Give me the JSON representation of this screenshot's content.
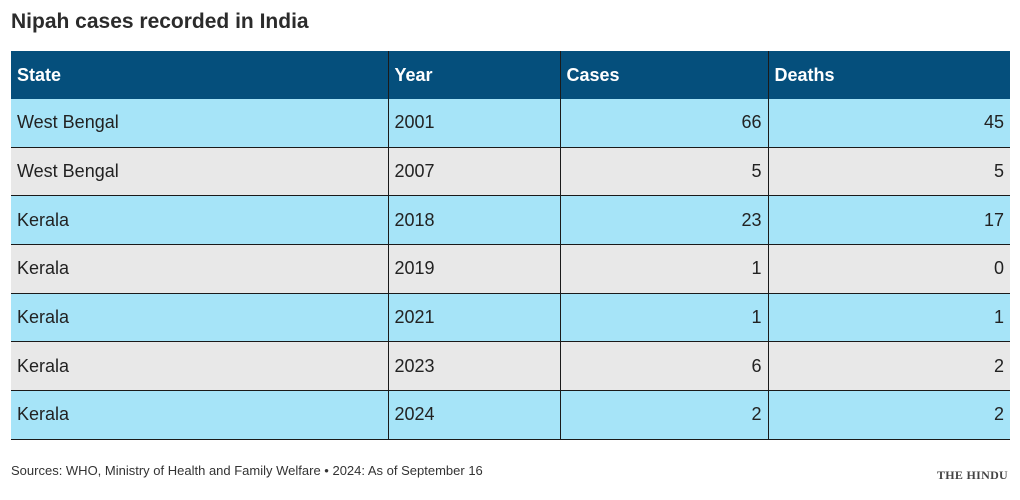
{
  "header": {
    "title": "Nipah cases recorded in India"
  },
  "table": {
    "columns": [
      "State",
      "Year",
      "Cases",
      "Deaths"
    ],
    "rows": [
      [
        "West Bengal",
        "2001",
        "66",
        "45"
      ],
      [
        "West Bengal",
        "2007",
        "5",
        "5"
      ],
      [
        "Kerala",
        "2018",
        "23",
        "17"
      ],
      [
        "Kerala",
        "2019",
        "1",
        "0"
      ],
      [
        "Kerala",
        "2021",
        "1",
        "1"
      ],
      [
        "Kerala",
        "2023",
        "6",
        "2"
      ],
      [
        "Kerala",
        "2024",
        "2",
        "2"
      ]
    ]
  },
  "footer": {
    "source": "Sources: WHO, Ministry of Health and Family Welfare • 2024: As of September 16",
    "logo": "THE HINDU"
  }
}
